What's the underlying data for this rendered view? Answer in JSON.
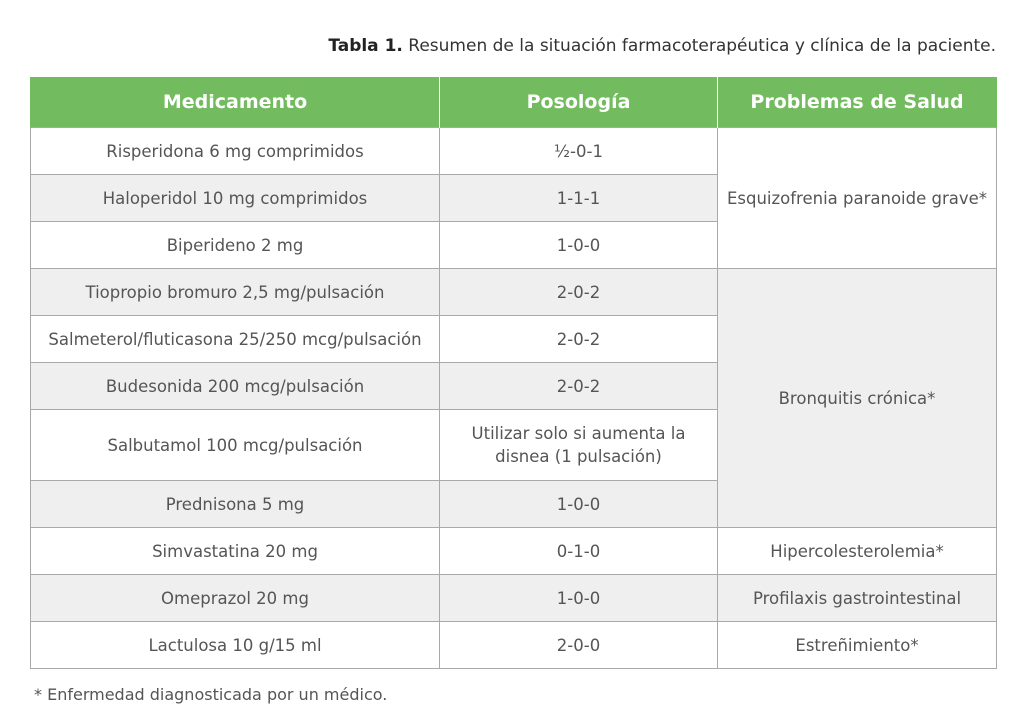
{
  "caption": {
    "label": "Tabla 1.",
    "text": "Resumen de la situación farmacoterapéutica y clínica de la paciente."
  },
  "table": {
    "headers": [
      "Medicamento",
      "Posología",
      "Problemas de Salud"
    ],
    "rows": [
      {
        "medicamento": "Risperidona 6 mg comprimidos",
        "posologia": "½-0-1"
      },
      {
        "medicamento": "Haloperidol 10 mg comprimidos",
        "posologia": "1-1-1"
      },
      {
        "medicamento": "Biperideno 2 mg",
        "posologia": "1-0-0"
      },
      {
        "medicamento": "Tiopropio bromuro 2,5 mg/pulsación",
        "posologia": "2-0-2"
      },
      {
        "medicamento": "Salmeterol/fluticasona 25/250 mcg/pulsación",
        "posologia": "2-0-2"
      },
      {
        "medicamento": "Budesonida 200 mcg/pulsación",
        "posologia": "2-0-2"
      },
      {
        "medicamento": "Salbutamol 100 mcg/pulsación",
        "posologia": "Utilizar solo si aumenta la disnea (1 pulsación)"
      },
      {
        "medicamento": "Prednisona 5 mg",
        "posologia": "1-0-0"
      },
      {
        "medicamento": "Simvastatina 20 mg",
        "posologia": "0-1-0"
      },
      {
        "medicamento": "Omeprazol 20 mg",
        "posologia": "1-0-0"
      },
      {
        "medicamento": "Lactulosa 10 g/15 ml",
        "posologia": "2-0-0"
      }
    ],
    "problemas": [
      "Esquizofrenia paranoide grave*",
      "Bronquitis crónica*",
      "Hipercolesterolemia*",
      "Profilaxis gastrointestinal",
      "Estreñimiento*"
    ]
  },
  "footnote": "* Enfermedad diagnosticada por un médico."
}
